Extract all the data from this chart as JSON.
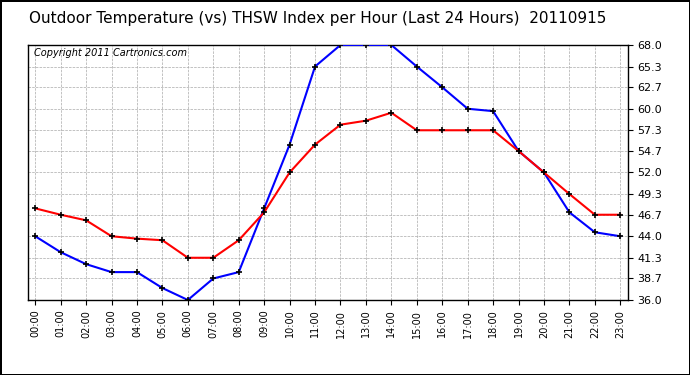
{
  "title": "Outdoor Temperature (vs) THSW Index per Hour (Last 24 Hours)  20110915",
  "copyright": "Copyright 2011 Cartronics.com",
  "hours": [
    "00:00",
    "01:00",
    "02:00",
    "03:00",
    "04:00",
    "05:00",
    "06:00",
    "07:00",
    "08:00",
    "09:00",
    "10:00",
    "11:00",
    "12:00",
    "13:00",
    "14:00",
    "15:00",
    "16:00",
    "17:00",
    "18:00",
    "19:00",
    "20:00",
    "21:00",
    "22:00",
    "23:00"
  ],
  "temp": [
    47.5,
    46.7,
    46.0,
    44.0,
    43.7,
    43.5,
    41.3,
    41.3,
    43.5,
    47.0,
    52.0,
    55.5,
    58.0,
    58.5,
    59.5,
    57.3,
    57.3,
    57.3,
    57.3,
    54.7,
    52.0,
    49.3,
    46.7,
    46.7
  ],
  "thsw": [
    44.0,
    42.0,
    40.5,
    39.5,
    39.5,
    37.5,
    36.0,
    38.7,
    39.5,
    47.5,
    55.5,
    65.3,
    68.0,
    68.0,
    68.0,
    65.3,
    62.7,
    60.0,
    59.7,
    54.7,
    52.0,
    47.0,
    44.5,
    44.0
  ],
  "y_ticks": [
    36.0,
    38.7,
    41.3,
    44.0,
    46.7,
    49.3,
    52.0,
    54.7,
    57.3,
    60.0,
    62.7,
    65.3,
    68.0
  ],
  "y_min": 36.0,
  "y_max": 68.0,
  "temp_color": "#ff0000",
  "thsw_color": "#0000ff",
  "bg_color": "#ffffff",
  "grid_color": "#aaaaaa",
  "title_fontsize": 11,
  "copyright_fontsize": 7
}
